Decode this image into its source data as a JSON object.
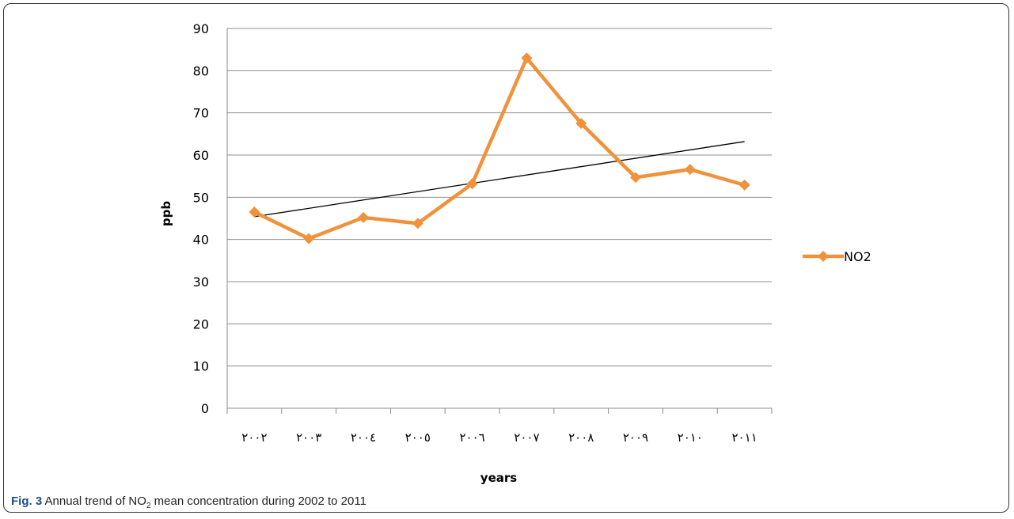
{
  "chart_data": {
    "type": "line",
    "x_labels": [
      "٢٠٠٢",
      "٢٠٠٣",
      "٢٠٠٤",
      "٢٠٠٥",
      "٢٠٠٦",
      "٢٠٠٧",
      "٢٠٠٨",
      "٢٠٠٩",
      "٢٠١٠",
      "٢٠١١"
    ],
    "series": [
      {
        "name": "NO2",
        "values": [
          46.5,
          40.2,
          45.2,
          43.8,
          53.2,
          83.0,
          67.5,
          54.7,
          56.6,
          52.9
        ],
        "color": "#f0913b"
      }
    ],
    "trendline": {
      "start": 45.4,
      "end": 63.2,
      "color": "#000000"
    },
    "xlabel": "years",
    "ylabel": "ppb",
    "ylim": [
      0,
      90
    ],
    "yticks": [
      0,
      10,
      20,
      30,
      40,
      50,
      60,
      70,
      80,
      90
    ],
    "grid": true,
    "legend": "right"
  },
  "caption": {
    "fig_label": "Fig. 3",
    "text_before": "Annual trend of NO",
    "subscript": "2",
    "text_after": " mean concentration during 2002 to 2011"
  }
}
